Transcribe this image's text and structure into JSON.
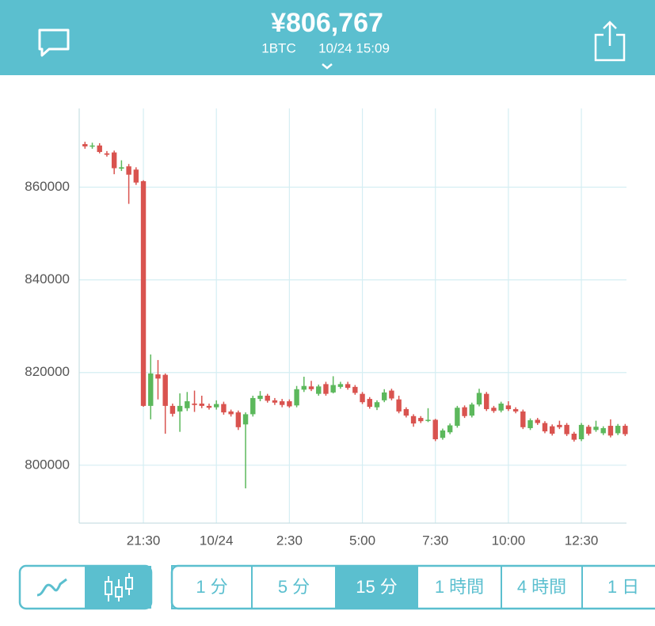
{
  "header": {
    "price": "¥806,767",
    "pair": "1BTC",
    "time": "10/24 15:09"
  },
  "intervals": [
    "1 分",
    "5 分",
    "15 分",
    "1 時間",
    "4 時間",
    "1 日"
  ],
  "selected_interval": 2,
  "chart_data": {
    "type": "candlestick",
    "categories": [
      null,
      null,
      null,
      null,
      null,
      null,
      null,
      null,
      "21:30",
      null,
      null,
      null,
      null,
      null,
      null,
      null,
      null,
      null,
      "10/24",
      null,
      null,
      null,
      null,
      null,
      null,
      null,
      null,
      null,
      "2:30",
      null,
      null,
      null,
      null,
      null,
      null,
      null,
      null,
      null,
      "5:00",
      null,
      null,
      null,
      null,
      null,
      null,
      null,
      null,
      null,
      "7:30",
      null,
      null,
      null,
      null,
      null,
      null,
      null,
      null,
      null,
      "10:00",
      null,
      null,
      null,
      null,
      null,
      null,
      null,
      null,
      null,
      "12:30",
      null,
      null,
      null,
      null,
      null,
      null
    ],
    "open": [
      869300,
      868800,
      869000,
      867300,
      867500,
      864000,
      864500,
      863800,
      861300,
      812800,
      819600,
      819500,
      812800,
      811600,
      812300,
      813300,
      813300,
      812800,
      812500,
      813200,
      811600,
      811400,
      808800,
      811000,
      814300,
      815000,
      814000,
      813800,
      813800,
      812900,
      816300,
      817000,
      815400,
      817500,
      815700,
      816900,
      817500,
      816900,
      815400,
      814300,
      812500,
      814000,
      816100,
      814200,
      812100,
      810600,
      810200,
      809600,
      809800,
      805900,
      807100,
      808500,
      812500,
      810700,
      813100,
      815400,
      812400,
      811800,
      812900,
      812100,
      811600,
      808000,
      809800,
      809100,
      808400,
      808700,
      808700,
      806800,
      805600,
      808300,
      807600,
      806900,
      808500,
      806900,
      808500
    ],
    "high": [
      869800,
      869600,
      869500,
      867800,
      867900,
      865800,
      865000,
      864300,
      861500,
      823900,
      822700,
      819800,
      813300,
      815500,
      815800,
      816100,
      815000,
      813300,
      814000,
      813700,
      812000,
      811800,
      811400,
      815000,
      816000,
      815400,
      814500,
      814300,
      814200,
      817100,
      819100,
      818200,
      817400,
      818000,
      819200,
      818000,
      818000,
      817300,
      815800,
      814700,
      814000,
      816400,
      816500,
      815000,
      812500,
      811000,
      810600,
      812300,
      810000,
      807900,
      809000,
      812800,
      812900,
      813500,
      816500,
      815800,
      812800,
      813700,
      813800,
      812500,
      812000,
      810100,
      810200,
      809500,
      808800,
      809600,
      809100,
      807200,
      809100,
      808700,
      809600,
      808400,
      809900,
      808900,
      808900
    ],
    "low": [
      868300,
      868300,
      867300,
      866600,
      862800,
      863500,
      856400,
      860500,
      812600,
      809900,
      814200,
      806800,
      810500,
      807200,
      811700,
      811500,
      812300,
      812000,
      812000,
      810900,
      810500,
      807600,
      795000,
      810500,
      813800,
      813500,
      813000,
      812500,
      812400,
      812500,
      815800,
      816000,
      815000,
      815000,
      815500,
      816500,
      816300,
      815200,
      813200,
      812200,
      811900,
      813600,
      814000,
      811200,
      810300,
      808300,
      809100,
      809300,
      805200,
      805500,
      806700,
      808100,
      810200,
      810300,
      812700,
      811700,
      811300,
      811400,
      811700,
      811200,
      807800,
      807600,
      808700,
      806900,
      806400,
      807800,
      806300,
      805100,
      805200,
      806400,
      807200,
      806500,
      806000,
      806500,
      806300
    ],
    "close": [
      868800,
      869000,
      867600,
      867000,
      864100,
      864300,
      862700,
      861000,
      812800,
      819800,
      818700,
      812800,
      811100,
      812800,
      813800,
      813000,
      812800,
      812400,
      813200,
      811400,
      811000,
      808200,
      811000,
      814500,
      815000,
      813900,
      813500,
      813000,
      812700,
      816400,
      817100,
      816400,
      817000,
      815400,
      817300,
      817500,
      816700,
      815600,
      813600,
      812600,
      813600,
      815700,
      814400,
      811600,
      810700,
      809000,
      809500,
      809800,
      805600,
      807500,
      808600,
      812400,
      810600,
      813100,
      815600,
      812100,
      811700,
      813300,
      812100,
      811600,
      808200,
      809700,
      809100,
      807300,
      806800,
      808200,
      806700,
      805500,
      808700,
      806800,
      808300,
      808000,
      806400,
      808500,
      806700
    ],
    "up_color": "#5cb85c",
    "down_color": "#d9534f",
    "ylim": [
      787500,
      877000
    ],
    "yticks": [
      800000,
      820000,
      840000,
      860000
    ],
    "grid": true
  }
}
